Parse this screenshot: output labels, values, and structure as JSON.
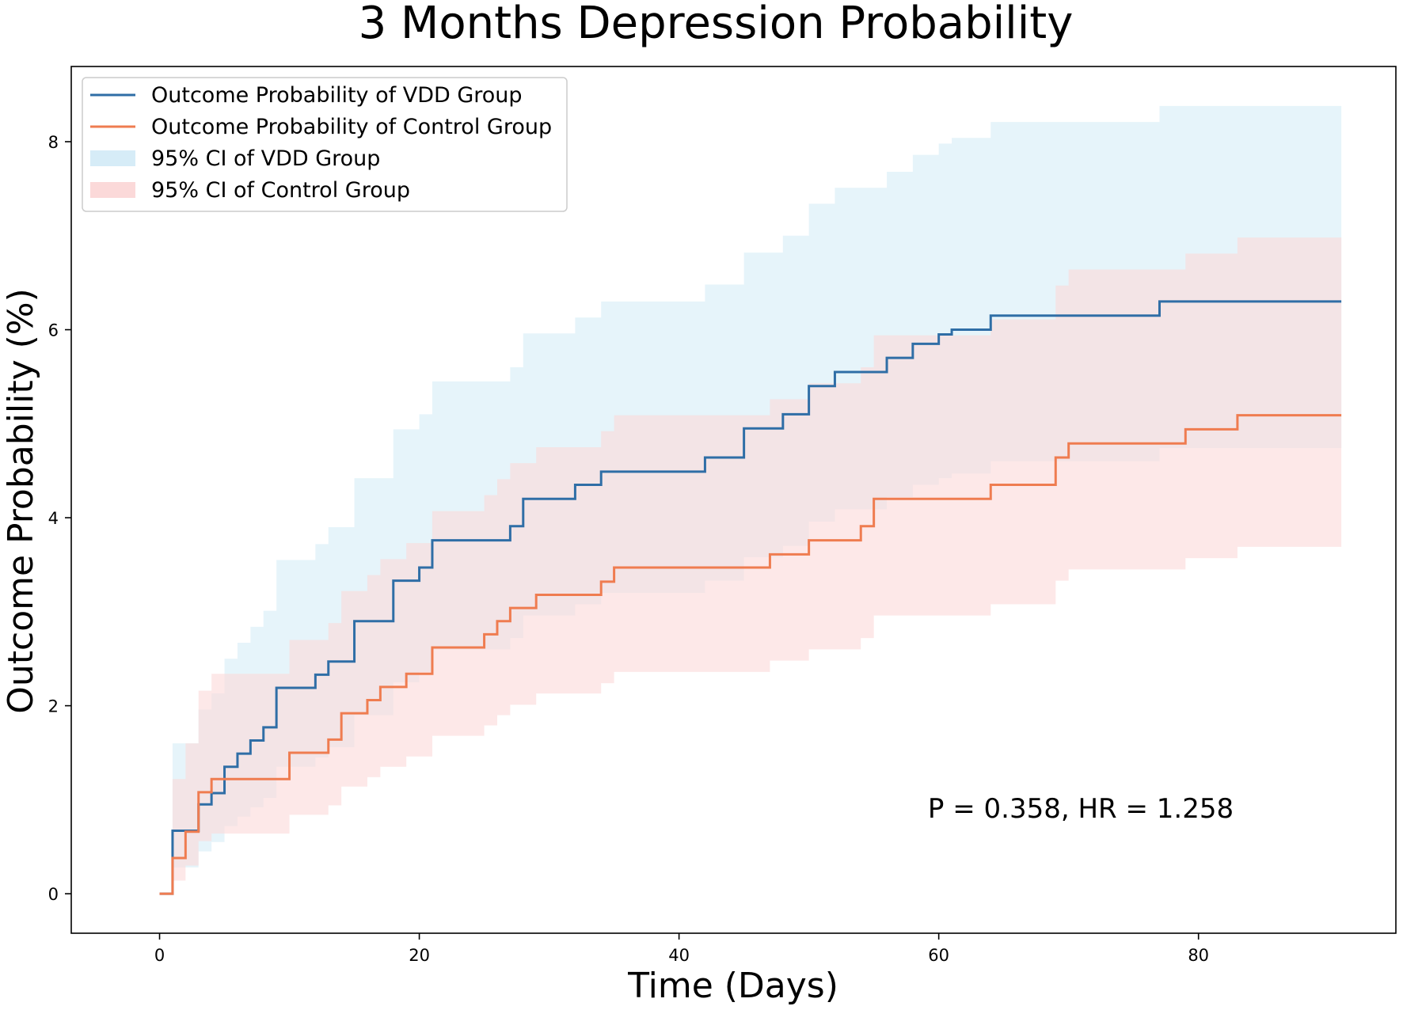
{
  "chart_data": {
    "type": "line",
    "title": "3 Months Depression Probability",
    "xlabel": "Time (Days)",
    "ylabel": "Outcome Probability (%)",
    "xlim": [
      -6.8,
      95.2
    ],
    "ylim": [
      -0.42,
      8.8
    ],
    "xticks": [
      0,
      20,
      40,
      60,
      80
    ],
    "yticks": [
      0,
      2,
      4,
      6,
      8
    ],
    "xtick_labels": [
      "0",
      "20",
      "40",
      "60",
      "80"
    ],
    "ytick_labels": [
      "0",
      "2",
      "4",
      "6",
      "8"
    ],
    "grid": false,
    "legend_position": "top-left",
    "annotation": "P = 0.358, HR = 1.258",
    "legend": [
      {
        "label": "Outcome Probability of VDD Group",
        "kind": "line",
        "color": "#2f6ea6"
      },
      {
        "label": "Outcome Probability of Control Group",
        "kind": "line",
        "color": "#ef7c50"
      },
      {
        "label": "95% CI of VDD Group",
        "kind": "band",
        "color": "#d6ecf7"
      },
      {
        "label": "95% CI of Control Group",
        "kind": "band",
        "color": "#fbd9d9"
      }
    ],
    "series": [
      {
        "name": "Outcome Probability of VDD Group",
        "color": "#2f6ea6",
        "x": [
          0,
          1,
          2,
          3,
          4,
          5,
          6,
          7,
          8,
          9,
          10,
          11,
          12,
          13,
          14,
          15,
          16,
          17,
          18,
          19,
          20,
          21,
          22,
          26,
          27,
          28,
          29,
          31,
          32,
          33,
          34,
          41,
          42,
          44,
          45,
          47,
          48,
          49,
          50,
          51,
          52,
          54,
          55,
          56,
          57,
          58,
          60,
          61,
          63,
          64,
          76,
          77,
          91
        ],
        "y": [
          0,
          0.67,
          0.67,
          0.95,
          1.07,
          1.35,
          1.49,
          1.63,
          1.77,
          2.19,
          2.19,
          2.19,
          2.33,
          2.47,
          2.47,
          2.9,
          2.9,
          2.9,
          3.33,
          3.33,
          3.47,
          3.76,
          3.76,
          3.76,
          3.91,
          4.2,
          4.2,
          4.2,
          4.35,
          4.35,
          4.49,
          4.49,
          4.64,
          4.64,
          4.95,
          4.95,
          5.1,
          5.1,
          5.4,
          5.4,
          5.55,
          5.55,
          5.55,
          5.7,
          5.7,
          5.85,
          5.95,
          6.0,
          6.0,
          6.15,
          6.15,
          6.3,
          6.3
        ]
      },
      {
        "name": "Outcome Probability of Control Group",
        "color": "#ef7c50",
        "x": [
          0,
          1,
          2,
          3,
          4,
          5,
          9,
          10,
          12,
          13,
          14,
          15,
          16,
          17,
          18,
          19,
          20,
          21,
          22,
          24,
          25,
          26,
          27,
          28,
          29,
          30,
          33,
          34,
          35,
          46,
          47,
          49,
          50,
          53,
          54,
          55,
          63,
          64,
          65,
          69,
          70,
          78,
          79,
          81,
          83,
          91
        ],
        "y": [
          0,
          0.38,
          0.66,
          1.08,
          1.22,
          1.22,
          1.22,
          1.5,
          1.5,
          1.64,
          1.92,
          1.92,
          2.06,
          2.2,
          2.2,
          2.34,
          2.34,
          2.62,
          2.62,
          2.62,
          2.76,
          2.9,
          3.04,
          3.04,
          3.18,
          3.18,
          3.18,
          3.32,
          3.47,
          3.47,
          3.61,
          3.61,
          3.76,
          3.76,
          3.91,
          4.2,
          4.2,
          4.35,
          4.35,
          4.64,
          4.79,
          4.79,
          4.94,
          4.94,
          5.09,
          5.09
        ]
      }
    ],
    "bands": [
      {
        "name": "95% CI of VDD Group",
        "color": "#d6ecf7",
        "x": [
          0,
          1,
          2,
          3,
          4,
          5,
          6,
          7,
          8,
          9,
          10,
          11,
          12,
          13,
          14,
          15,
          16,
          17,
          18,
          19,
          20,
          21,
          22,
          26,
          27,
          28,
          29,
          31,
          32,
          33,
          34,
          41,
          42,
          44,
          45,
          47,
          48,
          49,
          50,
          51,
          52,
          54,
          55,
          56,
          57,
          58,
          60,
          61,
          63,
          64,
          76,
          77,
          91
        ],
        "lower": [
          0,
          0.28,
          0.28,
          0.45,
          0.55,
          0.72,
          0.82,
          0.92,
          1.02,
          1.35,
          1.35,
          1.35,
          1.45,
          1.56,
          1.56,
          1.9,
          1.9,
          1.9,
          2.25,
          2.25,
          2.36,
          2.6,
          2.6,
          2.6,
          2.72,
          2.96,
          2.96,
          2.96,
          3.08,
          3.08,
          3.2,
          3.2,
          3.33,
          3.33,
          3.58,
          3.58,
          3.7,
          3.7,
          3.96,
          3.96,
          4.09,
          4.09,
          4.09,
          4.22,
          4.22,
          4.35,
          4.42,
          4.47,
          4.47,
          4.6,
          4.6,
          4.74,
          4.74
        ],
        "upper": [
          0,
          1.6,
          1.6,
          1.96,
          2.13,
          2.5,
          2.67,
          2.84,
          3.01,
          3.55,
          3.55,
          3.55,
          3.72,
          3.9,
          3.9,
          4.42,
          4.42,
          4.42,
          4.94,
          4.94,
          5.1,
          5.45,
          5.45,
          5.45,
          5.6,
          5.96,
          5.96,
          5.96,
          6.13,
          6.13,
          6.3,
          6.3,
          6.48,
          6.48,
          6.82,
          6.82,
          7.0,
          7.0,
          7.34,
          7.34,
          7.51,
          7.51,
          7.51,
          7.68,
          7.68,
          7.86,
          7.98,
          8.04,
          8.04,
          8.21,
          8.21,
          8.38,
          8.38
        ]
      },
      {
        "name": "95% CI of Control Group",
        "color": "#fbd9d9",
        "x": [
          0,
          1,
          2,
          3,
          4,
          5,
          9,
          10,
          12,
          13,
          14,
          15,
          16,
          17,
          18,
          19,
          20,
          21,
          22,
          24,
          25,
          26,
          27,
          28,
          29,
          30,
          33,
          34,
          35,
          46,
          47,
          49,
          50,
          53,
          54,
          55,
          63,
          64,
          65,
          69,
          70,
          78,
          79,
          81,
          83,
          91
        ],
        "lower": [
          0,
          0.14,
          0.3,
          0.56,
          0.64,
          0.64,
          0.64,
          0.84,
          0.84,
          0.94,
          1.14,
          1.14,
          1.24,
          1.35,
          1.35,
          1.46,
          1.46,
          1.68,
          1.68,
          1.68,
          1.79,
          1.9,
          2.01,
          2.01,
          2.13,
          2.13,
          2.13,
          2.24,
          2.36,
          2.36,
          2.48,
          2.48,
          2.6,
          2.6,
          2.72,
          2.96,
          2.96,
          3.08,
          3.08,
          3.33,
          3.45,
          3.45,
          3.57,
          3.57,
          3.69,
          3.69
        ],
        "upper": [
          0,
          1.22,
          1.6,
          2.16,
          2.34,
          2.34,
          2.34,
          2.7,
          2.7,
          2.88,
          3.22,
          3.22,
          3.39,
          3.56,
          3.56,
          3.73,
          3.73,
          4.07,
          4.07,
          4.07,
          4.24,
          4.41,
          4.58,
          4.58,
          4.75,
          4.75,
          4.75,
          4.92,
          5.09,
          5.09,
          5.26,
          5.26,
          5.43,
          5.43,
          5.6,
          5.94,
          5.94,
          6.11,
          6.11,
          6.47,
          6.64,
          6.64,
          6.81,
          6.81,
          6.98,
          6.98
        ]
      }
    ]
  }
}
